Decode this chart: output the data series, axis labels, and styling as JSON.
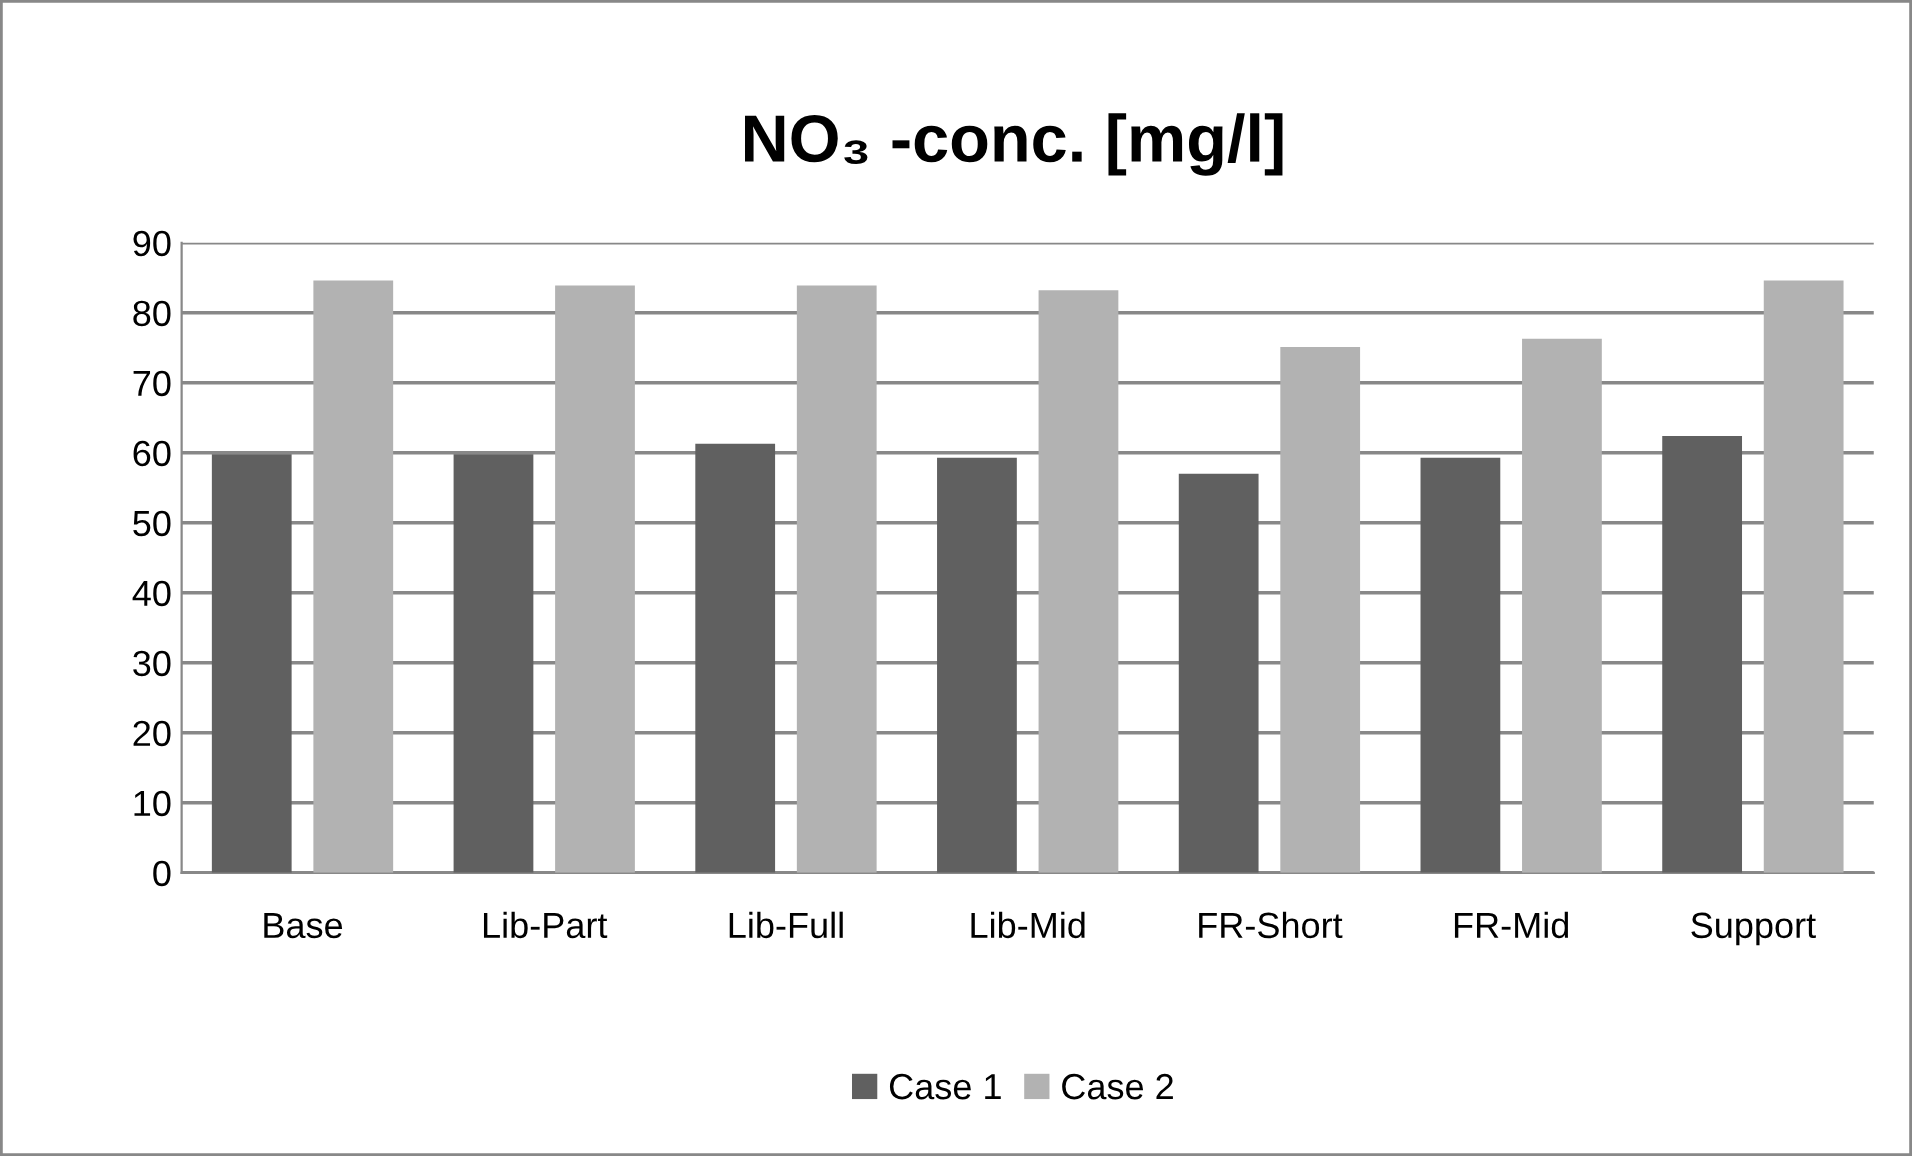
{
  "chart_data": {
    "type": "bar",
    "title": "NO₃ -conc. [mg/l]",
    "categories": [
      "Base",
      "Lib-Part",
      "Lib-Full",
      "Lib-Mid",
      "FR-Short",
      "FR-Mid",
      "Support"
    ],
    "series": [
      {
        "name": "Case 1",
        "color": "#606060",
        "values": [
          59.8,
          59.8,
          61.3,
          59.3,
          57.0,
          59.3,
          62.4
        ]
      },
      {
        "name": "Case 2",
        "color": "#b2b2b2",
        "values": [
          84.6,
          83.9,
          83.9,
          83.2,
          75.1,
          76.3,
          84.6
        ]
      }
    ],
    "ylim": [
      0,
      90
    ],
    "yticks": [
      0,
      10,
      20,
      30,
      40,
      50,
      60,
      70,
      80,
      90
    ],
    "grid": "y",
    "legend": "bottom"
  }
}
